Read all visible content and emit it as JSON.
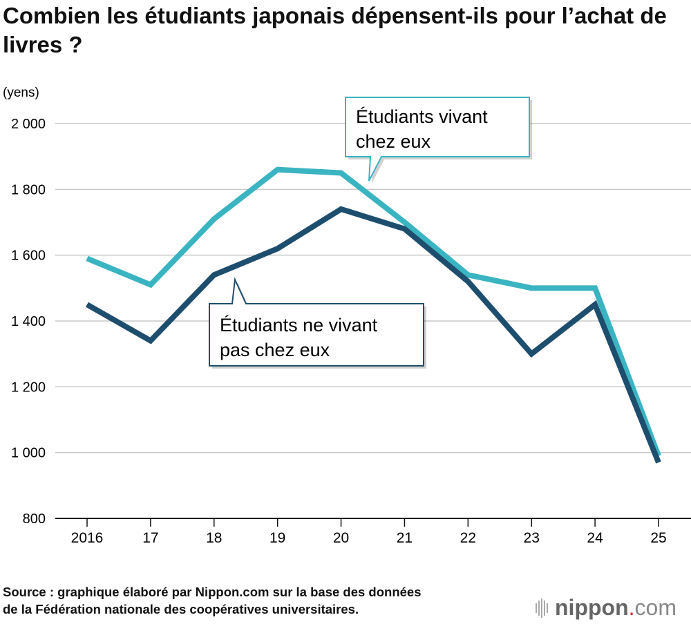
{
  "chart_data": {
    "type": "line",
    "title": "Combien les étudiants japonais dépensent-ils pour l’achat de livres ?",
    "ylabel": "(yens)",
    "xlabel": "",
    "categories": [
      "2016",
      "17",
      "18",
      "19",
      "20",
      "21",
      "22",
      "23",
      "24",
      "25"
    ],
    "y_ticks": [
      800,
      1000,
      1200,
      1400,
      1600,
      1800,
      2000
    ],
    "y_tick_labels": [
      "800",
      "1 000",
      "1 200",
      "1 400",
      "1 600",
      "1 800",
      "2 000"
    ],
    "ylim": [
      800,
      2000
    ],
    "grid": "horizontal",
    "series": [
      {
        "name": "Étudiants vivant chez eux",
        "label_lines": [
          "Étudiants vivant",
          "chez eux"
        ],
        "color": "#3ab4c1",
        "values": [
          1590,
          1510,
          1710,
          1860,
          1850,
          1700,
          1540,
          1500,
          1500,
          990
        ]
      },
      {
        "name": "Étudiants ne vivant pas chez eux",
        "label_lines": [
          "Étudiants ne vivant",
          "pas chez eux"
        ],
        "color": "#1e4e6e",
        "values": [
          1450,
          1340,
          1540,
          1620,
          1740,
          1680,
          1520,
          1300,
          1450,
          970
        ]
      }
    ]
  },
  "source": [
    "Source : graphique élaboré par Nippon.com sur la base des données",
    "de la Fédération nationale des coopératives universitaires."
  ],
  "logo": {
    "name": "nippon",
    "dot": ".",
    "suffix": "com"
  }
}
